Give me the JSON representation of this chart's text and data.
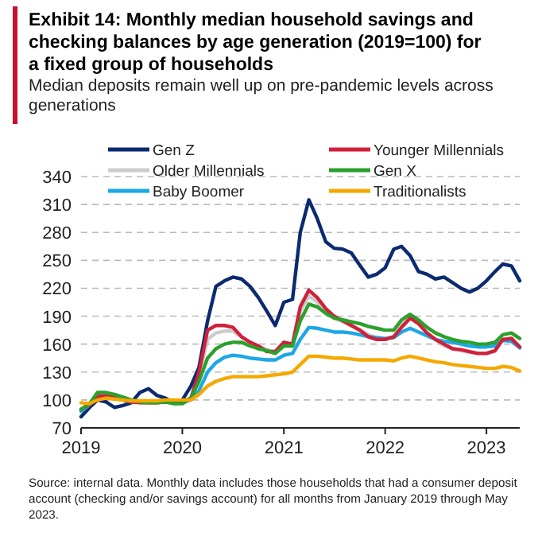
{
  "chart_data": {
    "type": "line",
    "title": "Exhibit 14: Monthly median household savings and checking balances by age generation (2019=100)  for a fixed group of households",
    "subtitle": "Median deposits remain well up on pre-pandemic levels across generations",
    "x": [
      "2019-01",
      "2019-02",
      "2019-03",
      "2019-04",
      "2019-05",
      "2019-06",
      "2019-07",
      "2019-08",
      "2019-09",
      "2019-10",
      "2019-11",
      "2019-12",
      "2020-01",
      "2020-02",
      "2020-03",
      "2020-04",
      "2020-05",
      "2020-06",
      "2020-07",
      "2020-08",
      "2020-09",
      "2020-10",
      "2020-11",
      "2020-12",
      "2021-01",
      "2021-02",
      "2021-03",
      "2021-04",
      "2021-05",
      "2021-06",
      "2021-07",
      "2021-08",
      "2021-09",
      "2021-10",
      "2021-11",
      "2021-12",
      "2022-01",
      "2022-02",
      "2022-03",
      "2022-04",
      "2022-05",
      "2022-06",
      "2022-07",
      "2022-08",
      "2022-09",
      "2022-10",
      "2022-11",
      "2022-12",
      "2023-01",
      "2023-02",
      "2023-03",
      "2023-04",
      "2023-05"
    ],
    "series": [
      {
        "name": "Gen Z",
        "color": "#0b2a6f",
        "values": [
          82,
          92,
          100,
          98,
          92,
          94,
          97,
          108,
          112,
          105,
          102,
          97,
          100,
          115,
          135,
          185,
          222,
          228,
          232,
          230,
          222,
          210,
          195,
          180,
          205,
          208,
          280,
          315,
          295,
          270,
          263,
          262,
          258,
          245,
          232,
          235,
          242,
          262,
          265,
          255,
          238,
          235,
          230,
          232,
          226,
          220,
          216,
          220,
          228,
          238,
          246,
          244,
          228
        ]
      },
      {
        "name": "Older Millennials",
        "color": "#cccccc",
        "values": [
          88,
          95,
          106,
          106,
          104,
          101,
          99,
          97,
          97,
          97,
          98,
          97,
          97,
          100,
          125,
          165,
          172,
          174,
          174,
          168,
          162,
          158,
          154,
          151,
          160,
          158,
          195,
          212,
          205,
          195,
          188,
          184,
          180,
          176,
          170,
          167,
          166,
          168,
          180,
          190,
          182,
          172,
          165,
          158,
          155,
          153,
          151,
          150,
          150,
          152,
          165,
          167,
          156
        ]
      },
      {
        "name": "Baby Boomer",
        "color": "#1ea7e6",
        "values": [
          88,
          95,
          104,
          104,
          102,
          100,
          98,
          98,
          98,
          98,
          98,
          98,
          98,
          100,
          110,
          130,
          140,
          146,
          148,
          147,
          145,
          144,
          143,
          143,
          148,
          150,
          165,
          178,
          177,
          175,
          173,
          173,
          172,
          170,
          168,
          167,
          166,
          167,
          173,
          177,
          173,
          169,
          165,
          163,
          162,
          160,
          158,
          157,
          157,
          158,
          164,
          163,
          156
        ]
      },
      {
        "name": "Younger Millennials",
        "color": "#d0203a",
        "values": [
          90,
          95,
          104,
          104,
          103,
          100,
          98,
          97,
          97,
          97,
          98,
          97,
          98,
          102,
          130,
          175,
          180,
          180,
          178,
          168,
          162,
          158,
          152,
          152,
          162,
          160,
          200,
          218,
          210,
          198,
          190,
          185,
          180,
          175,
          168,
          165,
          165,
          168,
          178,
          188,
          182,
          172,
          165,
          160,
          155,
          154,
          152,
          150,
          150,
          153,
          165,
          166,
          157
        ]
      },
      {
        "name": "Gen X",
        "color": "#2ba02b",
        "values": [
          90,
          96,
          108,
          108,
          106,
          103,
          100,
          98,
          97,
          97,
          98,
          96,
          96,
          102,
          120,
          145,
          155,
          160,
          162,
          162,
          158,
          155,
          153,
          150,
          158,
          158,
          185,
          203,
          200,
          193,
          188,
          186,
          184,
          182,
          179,
          177,
          175,
          175,
          186,
          192,
          186,
          178,
          172,
          168,
          165,
          163,
          162,
          160,
          160,
          162,
          170,
          172,
          166
        ]
      },
      {
        "name": "Traditionalists",
        "color": "#f5a800",
        "values": [
          97,
          96,
          100,
          102,
          101,
          100,
          99,
          99,
          99,
          99,
          100,
          100,
          100,
          100,
          106,
          115,
          120,
          123,
          125,
          125,
          125,
          125,
          126,
          127,
          128,
          130,
          138,
          147,
          147,
          146,
          145,
          145,
          144,
          143,
          143,
          143,
          143,
          142,
          145,
          147,
          145,
          143,
          141,
          140,
          138,
          137,
          136,
          135,
          134,
          134,
          136,
          135,
          131
        ]
      }
    ],
    "xlim": [
      "2019-01",
      "2023-05"
    ],
    "xticks": [
      "2019",
      "2020",
      "2021",
      "2022",
      "2023"
    ],
    "ylim": [
      70,
      340
    ],
    "yticks": [
      70,
      100,
      130,
      160,
      190,
      220,
      250,
      280,
      310,
      340
    ],
    "grid": "y",
    "legend": "top",
    "line_style": "solid",
    "marker": "none",
    "annotations": [
      "Source: internal data. Monthly data includes those households that had a consumer deposit account (checking and/or savings account) for all months from January 2019 through May 2023."
    ]
  }
}
